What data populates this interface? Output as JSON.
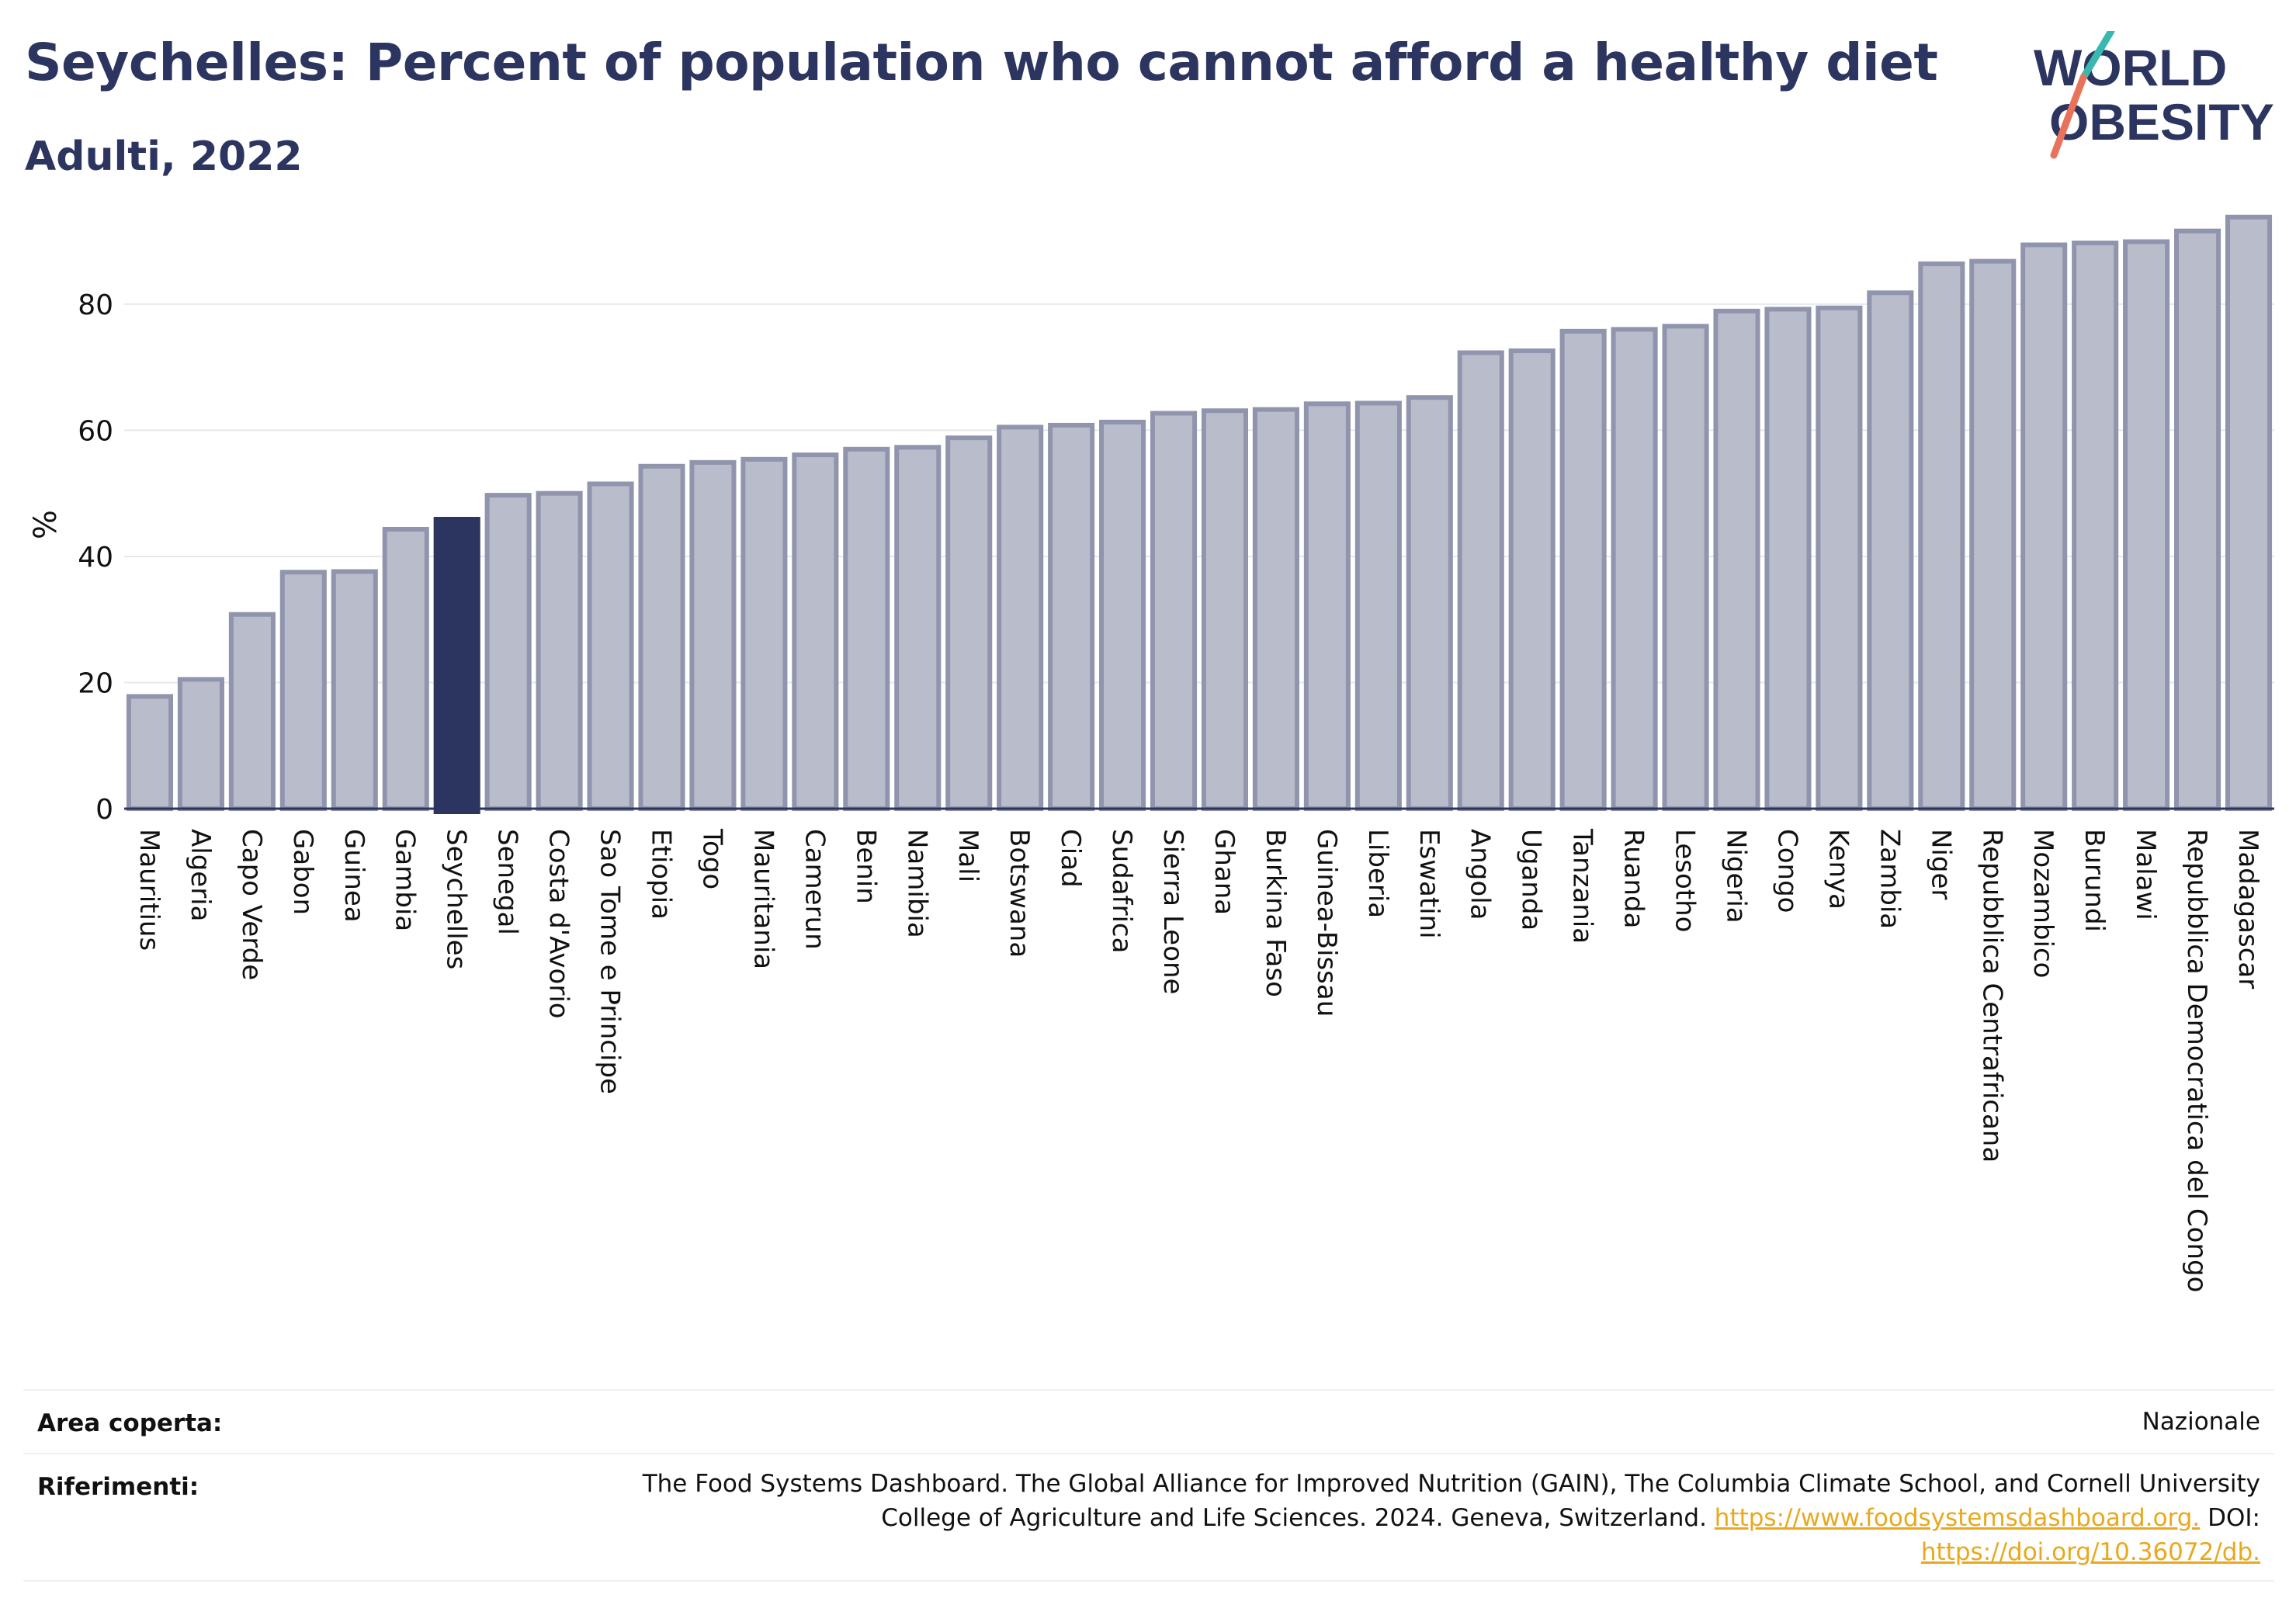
{
  "header": {
    "title": "Seychelles: Percent of population who cannot afford a healthy diet",
    "subtitle": "Adulti, 2022"
  },
  "logo": {
    "line1": "WORLD",
    "line2": "OBESITY",
    "accent_colors": [
      "#39b8b0",
      "#e8735a"
    ]
  },
  "colors": {
    "bar_default": "#b9bccb",
    "bar_default_stroke": "#9095ad",
    "bar_highlight": "#2c3560",
    "text_dark": "#2c3560",
    "link": "#e8a91e"
  },
  "chart_data": {
    "type": "bar",
    "ylabel": "%",
    "ylim": [
      0,
      95
    ],
    "yticks": [
      0,
      20,
      40,
      60,
      80
    ],
    "grid": true,
    "highlight": "Seychelles",
    "categories": [
      "Mauritius",
      "Algeria",
      "Capo Verde",
      "Gabon",
      "Guinea",
      "Gambia",
      "Seychelles",
      "Senegal",
      "Costa d'Avorio",
      "Sao Tome e Principe",
      "Etiopia",
      "Togo",
      "Mauritania",
      "Camerun",
      "Benin",
      "Namibia",
      "Mali",
      "Botswana",
      "Ciad",
      "Sudafrica",
      "Sierra Leone",
      "Ghana",
      "Burkina Faso",
      "Guinea-Bissau",
      "Liberia",
      "Eswatini",
      "Angola",
      "Uganda",
      "Tanzania",
      "Ruanda",
      "Lesotho",
      "Nigeria",
      "Congo",
      "Kenya",
      "Zambia",
      "Niger",
      "Repubblica Centrafricana",
      "Mozambico",
      "Burundi",
      "Malawi",
      "Repubblica Democratica del Congo",
      "Madagascar"
    ],
    "values": [
      17.8,
      20.5,
      30.8,
      37.5,
      37.6,
      44.3,
      45.9,
      49.7,
      50.0,
      51.5,
      54.3,
      54.9,
      55.4,
      56.1,
      57.0,
      57.3,
      58.8,
      60.5,
      60.8,
      61.3,
      62.7,
      63.1,
      63.3,
      64.2,
      64.3,
      65.2,
      72.3,
      72.6,
      75.7,
      76.0,
      76.5,
      78.9,
      79.2,
      79.4,
      81.8,
      86.4,
      86.8,
      89.4,
      89.7,
      89.9,
      91.6,
      93.8
    ]
  },
  "footer": {
    "area_label": "Area coperta:",
    "area_value": "Nazionale",
    "ref_label": "Riferimenti:",
    "ref_line1": "The Food Systems Dashboard. The Global Alliance for Improved Nutrition (GAIN), The Columbia Climate School, and Cornell University",
    "ref_line2_text": "College of Agriculture and Life Sciences. 2024. Geneva, Switzerland.",
    "ref_link1": "https://www.foodsystemsdashboard.org.",
    "ref_doi": "DOI:",
    "ref_link2": "https://doi.org/10.36072/db."
  }
}
